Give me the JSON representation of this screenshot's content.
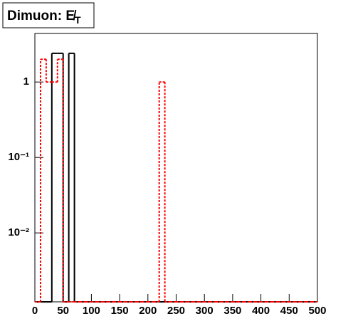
{
  "chart_data": {
    "type": "histogram",
    "title": "Dimuon: E̸",
    "title_subscript": "T",
    "bins": [
      0,
      10,
      20,
      30,
      40,
      50,
      60,
      70,
      80,
      90,
      100,
      110,
      120,
      130,
      140,
      150,
      160,
      170,
      180,
      190,
      200,
      210,
      220,
      230,
      240,
      250,
      260,
      270,
      280,
      290,
      300,
      310,
      320,
      330,
      340,
      350,
      360,
      370,
      380,
      390,
      400,
      410,
      420,
      430,
      440,
      450,
      460,
      470,
      480,
      490,
      500
    ],
    "series": [
      {
        "color": "#000000",
        "style": "solid",
        "values": [
          0,
          0,
          0,
          2.4,
          2.4,
          0,
          2.4,
          0,
          0,
          0,
          0,
          0,
          0,
          0,
          0,
          0,
          0,
          0,
          0,
          0,
          0,
          0,
          0,
          0,
          0,
          0,
          0,
          0,
          0,
          0,
          0,
          0,
          0,
          0,
          0,
          0,
          0,
          0,
          0,
          0,
          0,
          0,
          0,
          0,
          0,
          0,
          0,
          0,
          0,
          0
        ]
      },
      {
        "color": "#ff0000",
        "style": "dashed",
        "values": [
          0,
          2,
          1,
          1,
          2,
          0,
          0,
          0,
          0,
          0,
          0,
          0,
          0,
          0,
          0,
          0,
          0,
          0,
          0,
          0,
          0,
          0,
          1,
          0,
          0,
          0,
          0,
          0,
          0,
          0,
          0,
          0,
          0,
          0,
          0,
          0,
          0,
          0,
          0,
          0,
          0,
          0,
          0,
          0,
          0,
          0,
          0,
          0,
          0,
          0
        ]
      }
    ],
    "xlim": [
      0,
      500
    ],
    "xticks": [
      0,
      50,
      100,
      150,
      200,
      250,
      300,
      350,
      400,
      450,
      500
    ],
    "ylim": [
      0.00122,
      4.4
    ],
    "ylog": true,
    "yticks": [
      1,
      {
        "value": 0.1,
        "label": "10⁻¹"
      },
      {
        "value": 0.01,
        "label": "10⁻²"
      }
    ],
    "grid": false
  }
}
